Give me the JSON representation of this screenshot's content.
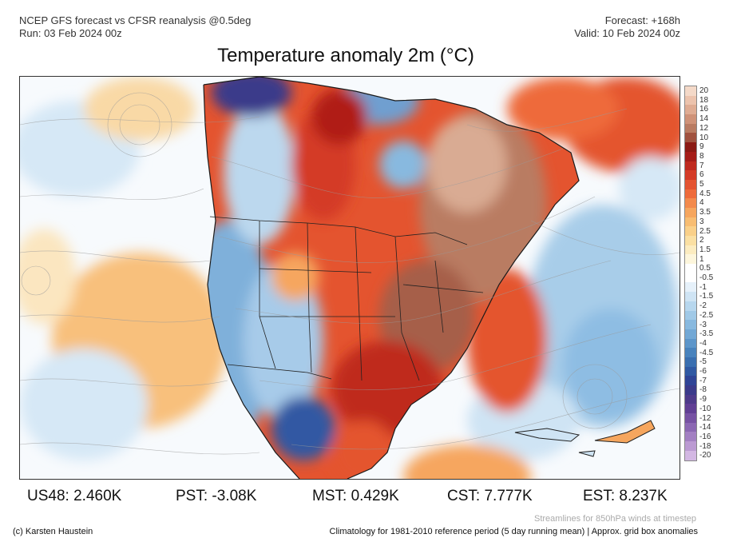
{
  "header": {
    "left_line1": "NCEP GFS forecast vs CFSR reanalysis @0.5deg",
    "left_line2": "Run: 03 Feb 2024 00z",
    "right_line1": "Forecast: +168h",
    "right_line2": "Valid: 10 Feb 2024 00z"
  },
  "title": "Temperature anomaly 2m (°C)",
  "colorbar": {
    "labels": [
      "20",
      "18",
      "16",
      "14",
      "12",
      "10",
      "9",
      "8",
      "7",
      "6",
      "5",
      "4.5",
      "4",
      "3.5",
      "3",
      "2.5",
      "2",
      "1.5",
      "1",
      "0.5",
      "-0.5",
      "-1",
      "-1.5",
      "-2",
      "-2.5",
      "-3",
      "-3.5",
      "-4",
      "-4.5",
      "-5",
      "-6",
      "-7",
      "-8",
      "-9",
      "-10",
      "-12",
      "-14",
      "-16",
      "-18",
      "-20"
    ],
    "colors": [
      "#f4d9c8",
      "#ecc3ad",
      "#dfac93",
      "#cf9278",
      "#b97b62",
      "#a0523f",
      "#8b1a14",
      "#a51d18",
      "#bf2a1f",
      "#d43b27",
      "#e45431",
      "#ee6b3b",
      "#f38a4c",
      "#f6a65e",
      "#f8bd72",
      "#fad089",
      "#fbe0a3",
      "#fcecc0",
      "#fdf6dc",
      "#ffffff",
      "#ffffff",
      "#e6f1fa",
      "#cfe4f4",
      "#b7d7ee",
      "#a0c9e7",
      "#88b9df",
      "#72a8d5",
      "#5d96ca",
      "#4983bd",
      "#3a6fb0",
      "#3059a3",
      "#2f4496",
      "#3b3a8a",
      "#4e3a8a",
      "#613f94",
      "#7752a3",
      "#8c68b3",
      "#a380c2",
      "#bb9ad2",
      "#d3b7e3"
    ]
  },
  "stats": [
    {
      "label": "US48",
      "value": "2.460K"
    },
    {
      "label": "PST",
      "value": "-3.08K"
    },
    {
      "label": "MST",
      "value": "0.429K"
    },
    {
      "label": "CST",
      "value": "7.777K"
    },
    {
      "label": "EST",
      "value": "8.237K"
    }
  ],
  "stream_note": "Streamlines for 850hPa winds at timestep",
  "credit": "(c) Karsten Haustein",
  "climatology_note": "Climatology for 1981-2010 reference period (5 day running mean) | Approx. grid box anomalies",
  "map": {
    "region": "North America",
    "colors": {
      "ocean_neutral": "#f4f8fc",
      "warm_light": "#f6c27a",
      "warm": "#e4542f",
      "hot": "#b01f18",
      "very_hot": "#b97b62",
      "extreme": "#e8c2ad",
      "cool": "#bcd8ee",
      "cold": "#6f9fd0",
      "very_cold": "#2f4a9e",
      "land_edge": "#222222"
    }
  }
}
